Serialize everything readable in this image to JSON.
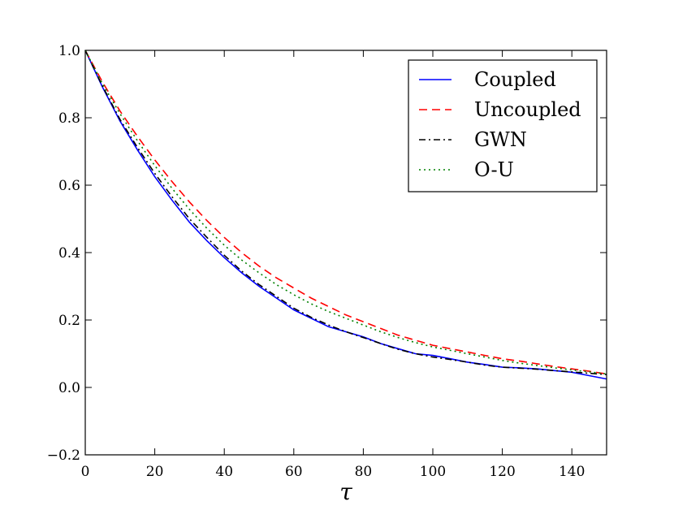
{
  "chart_data": {
    "type": "line",
    "title": "",
    "xlabel": "τ",
    "ylabel": "",
    "xlim": [
      0,
      150
    ],
    "ylim": [
      -0.2,
      1.0
    ],
    "xticks": [
      0,
      20,
      40,
      60,
      80,
      100,
      120,
      140
    ],
    "yticks": [
      -0.2,
      0.0,
      0.2,
      0.4,
      0.6,
      0.8,
      1.0
    ],
    "xtick_labels": [
      "0",
      "20",
      "40",
      "60",
      "80",
      "100",
      "120",
      "140"
    ],
    "ytick_labels": [
      "−0.2",
      "0.0",
      "0.2",
      "0.4",
      "0.6",
      "0.8",
      "1.0"
    ],
    "grid": false,
    "legend_position": "top-right",
    "x": [
      0,
      5,
      10,
      15,
      20,
      25,
      30,
      35,
      40,
      45,
      50,
      55,
      60,
      65,
      70,
      75,
      80,
      85,
      90,
      95,
      100,
      105,
      110,
      115,
      120,
      125,
      130,
      135,
      140,
      145,
      150
    ],
    "series": [
      {
        "name": "Coupled",
        "color": "#0000ff",
        "style": "solid",
        "values": [
          1.0,
          0.89,
          0.79,
          0.705,
          0.625,
          0.555,
          0.49,
          0.435,
          0.385,
          0.34,
          0.3,
          0.265,
          0.23,
          0.205,
          0.18,
          0.165,
          0.15,
          0.13,
          0.115,
          0.1,
          0.095,
          0.085,
          0.075,
          0.068,
          0.06,
          0.058,
          0.055,
          0.05,
          0.045,
          0.035,
          0.025
        ]
      },
      {
        "name": "Uncoupled",
        "color": "#ff0000",
        "style": "dashed",
        "values": [
          1.0,
          0.905,
          0.82,
          0.745,
          0.675,
          0.61,
          0.55,
          0.495,
          0.445,
          0.4,
          0.36,
          0.325,
          0.295,
          0.265,
          0.24,
          0.215,
          0.195,
          0.175,
          0.155,
          0.14,
          0.125,
          0.115,
          0.105,
          0.095,
          0.085,
          0.078,
          0.07,
          0.062,
          0.055,
          0.048,
          0.04
        ]
      },
      {
        "name": "GWN",
        "color": "#000000",
        "style": "dashdot",
        "values": [
          1.0,
          0.893,
          0.795,
          0.712,
          0.635,
          0.565,
          0.5,
          0.445,
          0.392,
          0.345,
          0.305,
          0.27,
          0.235,
          0.208,
          0.185,
          0.165,
          0.148,
          0.13,
          0.113,
          0.1,
          0.09,
          0.083,
          0.075,
          0.066,
          0.06,
          0.057,
          0.054,
          0.05,
          0.046,
          0.042,
          0.038
        ]
      },
      {
        "name": "O-U",
        "color": "#008000",
        "style": "dotted",
        "values": [
          1.0,
          0.9,
          0.812,
          0.732,
          0.658,
          0.59,
          0.528,
          0.472,
          0.422,
          0.378,
          0.34,
          0.305,
          0.275,
          0.248,
          0.225,
          0.205,
          0.185,
          0.165,
          0.148,
          0.133,
          0.12,
          0.11,
          0.1,
          0.09,
          0.08,
          0.072,
          0.065,
          0.058,
          0.052,
          0.046,
          0.04
        ]
      }
    ]
  }
}
